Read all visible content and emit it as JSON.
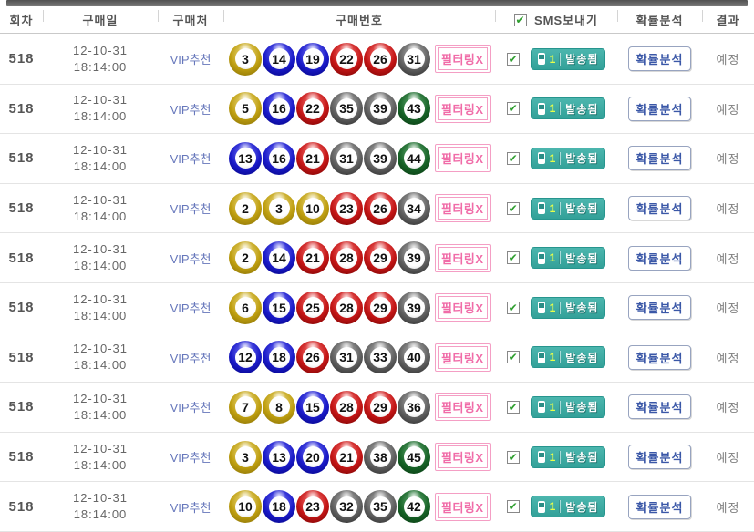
{
  "header": {
    "columns": [
      "회차",
      "구매일",
      "구매처",
      "구매번호",
      "SMS보내기",
      "확률분석",
      "결과"
    ],
    "sms_checkbox_checked": true
  },
  "rows": [
    {
      "round": "518",
      "date_line1": "12-10-31",
      "date_line2": "18:14:00",
      "seller": "VIP추천",
      "numbers": [
        3,
        14,
        19,
        22,
        26,
        31
      ],
      "filter_label": "필터링X",
      "sms_checked": true,
      "sms_count": "1",
      "sms_status": "발송됨",
      "analysis_label": "확률분석",
      "result": "예정"
    },
    {
      "round": "518",
      "date_line1": "12-10-31",
      "date_line2": "18:14:00",
      "seller": "VIP추천",
      "numbers": [
        5,
        16,
        22,
        35,
        39,
        43
      ],
      "filter_label": "필터링X",
      "sms_checked": true,
      "sms_count": "1",
      "sms_status": "발송됨",
      "analysis_label": "확률분석",
      "result": "예정"
    },
    {
      "round": "518",
      "date_line1": "12-10-31",
      "date_line2": "18:14:00",
      "seller": "VIP추천",
      "numbers": [
        13,
        16,
        21,
        31,
        39,
        44
      ],
      "filter_label": "필터링X",
      "sms_checked": true,
      "sms_count": "1",
      "sms_status": "발송됨",
      "analysis_label": "확률분석",
      "result": "예정"
    },
    {
      "round": "518",
      "date_line1": "12-10-31",
      "date_line2": "18:14:00",
      "seller": "VIP추천",
      "numbers": [
        2,
        3,
        10,
        23,
        26,
        34
      ],
      "filter_label": "필터링X",
      "sms_checked": true,
      "sms_count": "1",
      "sms_status": "발송됨",
      "analysis_label": "확률분석",
      "result": "예정"
    },
    {
      "round": "518",
      "date_line1": "12-10-31",
      "date_line2": "18:14:00",
      "seller": "VIP추천",
      "numbers": [
        2,
        14,
        21,
        28,
        29,
        39
      ],
      "filter_label": "필터링X",
      "sms_checked": true,
      "sms_count": "1",
      "sms_status": "발송됨",
      "analysis_label": "확률분석",
      "result": "예정"
    },
    {
      "round": "518",
      "date_line1": "12-10-31",
      "date_line2": "18:14:00",
      "seller": "VIP추천",
      "numbers": [
        6,
        15,
        25,
        28,
        29,
        39
      ],
      "filter_label": "필터링X",
      "sms_checked": true,
      "sms_count": "1",
      "sms_status": "발송됨",
      "analysis_label": "확률분석",
      "result": "예정"
    },
    {
      "round": "518",
      "date_line1": "12-10-31",
      "date_line2": "18:14:00",
      "seller": "VIP추천",
      "numbers": [
        12,
        18,
        26,
        31,
        33,
        40
      ],
      "filter_label": "필터링X",
      "sms_checked": true,
      "sms_count": "1",
      "sms_status": "발송됨",
      "analysis_label": "확률분석",
      "result": "예정"
    },
    {
      "round": "518",
      "date_line1": "12-10-31",
      "date_line2": "18:14:00",
      "seller": "VIP추천",
      "numbers": [
        7,
        8,
        15,
        28,
        29,
        36
      ],
      "filter_label": "필터링X",
      "sms_checked": true,
      "sms_count": "1",
      "sms_status": "발송됨",
      "analysis_label": "확률분석",
      "result": "예정"
    },
    {
      "round": "518",
      "date_line1": "12-10-31",
      "date_line2": "18:14:00",
      "seller": "VIP추천",
      "numbers": [
        3,
        13,
        20,
        21,
        38,
        45
      ],
      "filter_label": "필터링X",
      "sms_checked": true,
      "sms_count": "1",
      "sms_status": "발송됨",
      "analysis_label": "확률분석",
      "result": "예정"
    },
    {
      "round": "518",
      "date_line1": "12-10-31",
      "date_line2": "18:14:00",
      "seller": "VIP추천",
      "numbers": [
        10,
        18,
        23,
        32,
        35,
        42
      ],
      "filter_label": "필터링X",
      "sms_checked": true,
      "sms_count": "1",
      "sms_status": "발송됨",
      "analysis_label": "확률분석",
      "result": "예정"
    }
  ],
  "ball_colors": {
    "yellow": {
      "light": "#f2e292",
      "base": "#bf9f10",
      "dark": "#806a04"
    },
    "blue": {
      "light": "#8080ff",
      "base": "#1a1ac8",
      "dark": "#00007a"
    },
    "red": {
      "light": "#ff8080",
      "base": "#c41616",
      "dark": "#6e0000"
    },
    "gray": {
      "light": "#b8b8b8",
      "base": "#606060",
      "dark": "#262626"
    },
    "green": {
      "light": "#6cb47c",
      "base": "#176327",
      "dark": "#06330e"
    }
  },
  "colors": {
    "accent_teal": "#4cb6ae",
    "teal_dark": "#33a199",
    "badge_pink": "#f06ca8",
    "badge_border": "#f49ec4",
    "link_blue": "#6677bb",
    "analysis_blue": "#3a57a7",
    "check_green": "#2e9e2e",
    "result_gray": "#808080"
  }
}
